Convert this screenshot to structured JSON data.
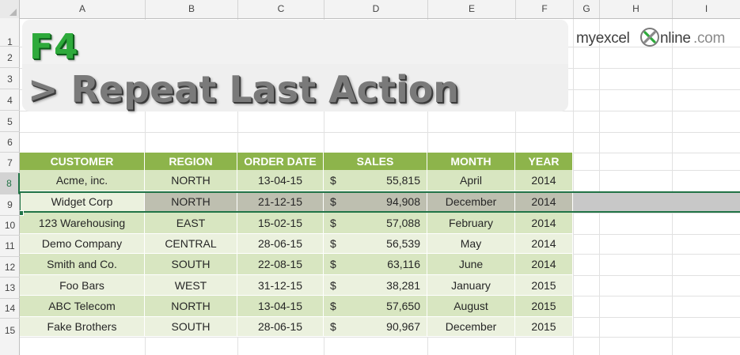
{
  "columns": [
    "A",
    "B",
    "C",
    "D",
    "E",
    "F",
    "G",
    "H",
    "I"
  ],
  "rows": [
    "1",
    "2",
    "3",
    "4",
    "5",
    "6",
    "7",
    "8",
    "9",
    "10",
    "11",
    "12",
    "13",
    "14",
    "15"
  ],
  "active_row": "8",
  "banner": {
    "key": "F4",
    "action": "> Repeat Last Action"
  },
  "logo": {
    "part1": "myexcel",
    "part2": "nline",
    "part3": ".com",
    "icon": "x-circle-logo-icon"
  },
  "table": {
    "headers": [
      "CUSTOMER",
      "REGION",
      "ORDER DATE",
      "SALES",
      "MONTH",
      "YEAR"
    ],
    "rows": [
      {
        "customer": "Acme, inc.",
        "region": "NORTH",
        "order_date": "13-04-15",
        "currency": "$",
        "sales": "55,815",
        "month": "April",
        "year": "2014"
      },
      {
        "customer": "Widget Corp",
        "region": "NORTH",
        "order_date": "21-12-15",
        "currency": "$",
        "sales": "94,908",
        "month": "December",
        "year": "2014"
      },
      {
        "customer": "123 Warehousing",
        "region": "EAST",
        "order_date": "15-02-15",
        "currency": "$",
        "sales": "57,088",
        "month": "February",
        "year": "2014"
      },
      {
        "customer": "Demo Company",
        "region": "CENTRAL",
        "order_date": "28-06-15",
        "currency": "$",
        "sales": "56,539",
        "month": "May",
        "year": "2014"
      },
      {
        "customer": "Smith and Co.",
        "region": "SOUTH",
        "order_date": "22-08-15",
        "currency": "$",
        "sales": "63,116",
        "month": "June",
        "year": "2014"
      },
      {
        "customer": "Foo Bars",
        "region": "WEST",
        "order_date": "31-12-15",
        "currency": "$",
        "sales": "38,281",
        "month": "January",
        "year": "2015"
      },
      {
        "customer": "ABC Telecom",
        "region": "NORTH",
        "order_date": "13-04-15",
        "currency": "$",
        "sales": "57,650",
        "month": "August",
        "year": "2015"
      },
      {
        "customer": "Fake Brothers",
        "region": "SOUTH",
        "order_date": "28-06-15",
        "currency": "$",
        "sales": "90,967",
        "month": "December",
        "year": "2015"
      }
    ]
  },
  "colors": {
    "header_green": "#8db44b",
    "row_dark": "#d8e6c1",
    "row_light": "#ebf1de",
    "selection_border": "#217346",
    "f4_green": "#2eaa3b"
  }
}
